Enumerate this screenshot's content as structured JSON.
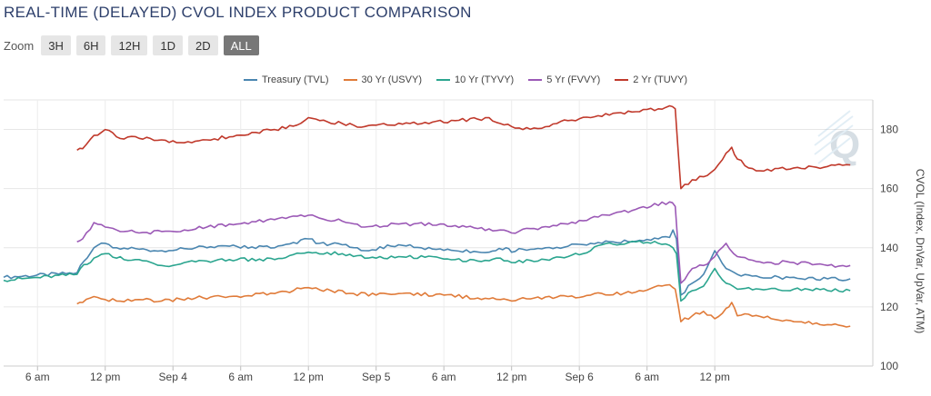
{
  "page": {
    "title": "REAL-TIME (DELAYED) CVOL INDEX PRODUCT COMPARISON"
  },
  "zoom": {
    "label": "Zoom",
    "buttons": [
      {
        "label": "3H",
        "active": false
      },
      {
        "label": "6H",
        "active": false
      },
      {
        "label": "12H",
        "active": false
      },
      {
        "label": "1D",
        "active": false
      },
      {
        "label": "2D",
        "active": false
      },
      {
        "label": "ALL",
        "active": true
      }
    ]
  },
  "chart_data": {
    "type": "line",
    "title": "REAL-TIME (DELAYED) CVOL INDEX PRODUCT COMPARISON",
    "ylabel": "CVOL (Index, DnVar, UpVar, ATM)",
    "ylim": [
      100,
      190
    ],
    "yticks": [
      100,
      120,
      140,
      160,
      180
    ],
    "xlim": [
      0,
      77
    ],
    "x_unit": "hours from Sep 3, 3 am",
    "xtick_labels": [
      {
        "x": 3,
        "label": "6 am"
      },
      {
        "x": 9,
        "label": "12 pm"
      },
      {
        "x": 15,
        "label": "Sep 4"
      },
      {
        "x": 21,
        "label": "6 am"
      },
      {
        "x": 27,
        "label": "12 pm"
      },
      {
        "x": 33,
        "label": "Sep 5"
      },
      {
        "x": 39,
        "label": "6 am"
      },
      {
        "x": 45,
        "label": "12 pm"
      },
      {
        "x": 51,
        "label": "Sep 6"
      },
      {
        "x": 57,
        "label": "6 am"
      },
      {
        "x": 63,
        "label": "12 pm"
      }
    ],
    "grid": true,
    "legend_position": "top-center",
    "series": [
      {
        "name": "Treasury (TVL)",
        "color": "#4a86b0",
        "points": [
          [
            0,
            130
          ],
          [
            6.5,
            131.5
          ],
          [
            6.8,
            134
          ],
          [
            8,
            140
          ],
          [
            9,
            141.5
          ],
          [
            10,
            140
          ],
          [
            12,
            139.5
          ],
          [
            14,
            139
          ],
          [
            17,
            140
          ],
          [
            20,
            140.5
          ],
          [
            24,
            140
          ],
          [
            27,
            143
          ],
          [
            28,
            141.5
          ],
          [
            30,
            141
          ],
          [
            32,
            139
          ],
          [
            35,
            141
          ],
          [
            37,
            140
          ],
          [
            40,
            139
          ],
          [
            43,
            138.5
          ],
          [
            44.5,
            140
          ],
          [
            45,
            138.5
          ],
          [
            46,
            139.5
          ],
          [
            48,
            140
          ],
          [
            50,
            140.5
          ],
          [
            52,
            141.5
          ],
          [
            54,
            142
          ],
          [
            58,
            143
          ],
          [
            59,
            143.5
          ],
          [
            59.3,
            146
          ],
          [
            59.6,
            143
          ],
          [
            60,
            124
          ],
          [
            61,
            128
          ],
          [
            62,
            131
          ],
          [
            63,
            139
          ],
          [
            64,
            133
          ],
          [
            65,
            131
          ],
          [
            67,
            130
          ],
          [
            70,
            130
          ],
          [
            73,
            129.5
          ],
          [
            75,
            129.5
          ]
        ]
      },
      {
        "name": "30 Yr (USVY)",
        "color": "#e07b39",
        "points": [
          [
            6.5,
            121
          ],
          [
            7,
            121.5
          ],
          [
            8,
            123.5
          ],
          [
            9,
            122.5
          ],
          [
            10,
            122
          ],
          [
            12,
            122.5
          ],
          [
            14,
            122
          ],
          [
            17,
            123
          ],
          [
            20,
            123.5
          ],
          [
            24,
            124.5
          ],
          [
            27,
            126.5
          ],
          [
            29,
            125.5
          ],
          [
            31,
            124.5
          ],
          [
            33,
            124
          ],
          [
            35,
            124.5
          ],
          [
            39,
            124
          ],
          [
            42,
            123
          ],
          [
            44,
            122.5
          ],
          [
            45,
            122
          ],
          [
            47,
            123
          ],
          [
            50,
            123.5
          ],
          [
            52,
            124
          ],
          [
            56,
            125
          ],
          [
            59,
            127.5
          ],
          [
            59.5,
            126
          ],
          [
            60,
            115
          ],
          [
            61,
            117
          ],
          [
            62,
            118.5
          ],
          [
            63,
            116
          ],
          [
            64,
            119.5
          ],
          [
            64.5,
            121.5
          ],
          [
            65,
            117
          ],
          [
            66,
            117.5
          ],
          [
            68,
            116
          ],
          [
            70,
            115
          ],
          [
            73,
            114
          ],
          [
            75,
            113.5
          ]
        ]
      },
      {
        "name": "10 Yr (TYVY)",
        "color": "#2ba58f",
        "points": [
          [
            0,
            129
          ],
          [
            6.5,
            131
          ],
          [
            6.8,
            133
          ],
          [
            8,
            136.5
          ],
          [
            9,
            138
          ],
          [
            10,
            136.5
          ],
          [
            12,
            136
          ],
          [
            14,
            134
          ],
          [
            15,
            134
          ],
          [
            16,
            135
          ],
          [
            18,
            135.5
          ],
          [
            20,
            136
          ],
          [
            24,
            136
          ],
          [
            27,
            138.5
          ],
          [
            30,
            138
          ],
          [
            33,
            136.5
          ],
          [
            35,
            137
          ],
          [
            38,
            137
          ],
          [
            40,
            136
          ],
          [
            42,
            135.5
          ],
          [
            44,
            136.5
          ],
          [
            45,
            135
          ],
          [
            48,
            136
          ],
          [
            50,
            137
          ],
          [
            52,
            139
          ],
          [
            53,
            141
          ],
          [
            56,
            142
          ],
          [
            58,
            141.5
          ],
          [
            59.3,
            140
          ],
          [
            59.6,
            138
          ],
          [
            60,
            122
          ],
          [
            61,
            125.5
          ],
          [
            62,
            127
          ],
          [
            63,
            133
          ],
          [
            64,
            128
          ],
          [
            65,
            126
          ],
          [
            67,
            126
          ],
          [
            70,
            126
          ],
          [
            73,
            125.5
          ],
          [
            75,
            125.5
          ]
        ]
      },
      {
        "name": "5 Yr (FVVY)",
        "color": "#9b59b6",
        "points": [
          [
            6.5,
            142
          ],
          [
            7,
            143
          ],
          [
            8,
            148.5
          ],
          [
            9,
            147
          ],
          [
            10,
            146
          ],
          [
            12,
            145
          ],
          [
            14,
            145.5
          ],
          [
            16,
            146
          ],
          [
            18,
            147
          ],
          [
            20,
            148
          ],
          [
            24,
            149.5
          ],
          [
            27,
            151
          ],
          [
            28,
            150
          ],
          [
            30,
            149
          ],
          [
            32,
            147
          ],
          [
            35,
            148
          ],
          [
            39,
            148
          ],
          [
            40,
            147.5
          ],
          [
            42,
            146.5
          ],
          [
            44,
            146
          ],
          [
            45,
            145
          ],
          [
            47,
            146.5
          ],
          [
            50,
            148
          ],
          [
            52,
            150
          ],
          [
            54,
            151.5
          ],
          [
            56,
            153
          ],
          [
            59,
            155.5
          ],
          [
            59.5,
            154
          ],
          [
            60,
            128
          ],
          [
            61,
            133
          ],
          [
            62,
            134
          ],
          [
            63,
            137
          ],
          [
            64,
            141.5
          ],
          [
            65,
            137
          ],
          [
            66,
            136
          ],
          [
            68,
            135
          ],
          [
            70,
            135
          ],
          [
            73,
            134
          ],
          [
            75,
            134
          ]
        ]
      },
      {
        "name": "2 Yr (TUVY)",
        "color": "#c0392b",
        "points": [
          [
            6.5,
            173
          ],
          [
            7,
            173.5
          ],
          [
            8,
            178
          ],
          [
            9,
            180
          ],
          [
            10,
            177.5
          ],
          [
            12,
            177
          ],
          [
            14,
            176.5
          ],
          [
            16,
            175.5
          ],
          [
            18,
            176.5
          ],
          [
            20,
            177.5
          ],
          [
            22,
            179
          ],
          [
            24,
            180
          ],
          [
            26,
            181.5
          ],
          [
            27,
            184
          ],
          [
            28,
            183
          ],
          [
            30,
            182
          ],
          [
            32,
            181
          ],
          [
            34,
            181.5
          ],
          [
            36,
            182
          ],
          [
            38,
            182.5
          ],
          [
            40,
            183
          ],
          [
            42,
            183.5
          ],
          [
            43,
            184
          ],
          [
            44,
            182
          ],
          [
            45,
            181
          ],
          [
            46,
            180
          ],
          [
            47,
            180.5
          ],
          [
            49,
            182
          ],
          [
            50,
            183
          ],
          [
            52,
            184
          ],
          [
            54,
            185.5
          ],
          [
            56,
            186
          ],
          [
            58,
            187
          ],
          [
            59,
            188
          ],
          [
            59.5,
            187
          ],
          [
            60,
            160
          ],
          [
            61,
            163
          ],
          [
            62,
            164
          ],
          [
            63,
            166.5
          ],
          [
            64,
            172
          ],
          [
            64.5,
            174
          ],
          [
            65,
            170
          ],
          [
            66,
            167
          ],
          [
            67,
            166
          ],
          [
            70,
            167
          ],
          [
            73,
            167.5
          ],
          [
            75,
            168
          ]
        ]
      }
    ]
  }
}
